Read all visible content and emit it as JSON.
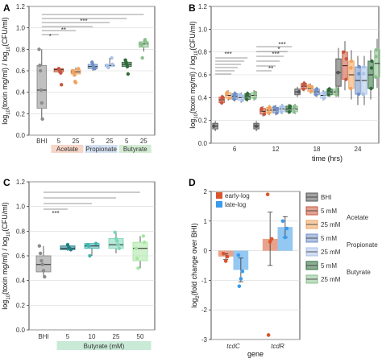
{
  "chart_data": [
    {
      "panel": "A",
      "type": "box",
      "ylabel": "log10(toxin mg/ml) / log10(CFU/ml)",
      "ylim": [
        0,
        1.2
      ],
      "yticks": [
        0,
        0.2,
        0.4,
        0.6,
        0.8,
        1.0,
        1.2
      ],
      "groups": [
        {
          "name": "BHI",
          "color": "#8c8c8c",
          "q1": 0.25,
          "median": 0.42,
          "q3": 0.65,
          "whisker_low": 0.15,
          "whisker_high": 0.8,
          "points": [
            0.8,
            0.65,
            0.6,
            0.42,
            0.3,
            0.15
          ]
        },
        {
          "name": "Acetate 5",
          "color": "#c8553d",
          "q1": 0.59,
          "median": 0.61,
          "q3": 0.62,
          "whisker_low": 0.58,
          "whisker_high": 0.62,
          "points": [
            0.62,
            0.61,
            0.6,
            0.58,
            0.47
          ]
        },
        {
          "name": "Acetate 25",
          "color": "#f0a35e",
          "q1": 0.57,
          "median": 0.59,
          "q3": 0.61,
          "whisker_low": 0.55,
          "whisker_high": 0.63,
          "points": [
            0.62,
            0.6,
            0.58,
            0.56,
            0.5,
            0.49
          ]
        },
        {
          "name": "Propionate 5",
          "color": "#6f8fc7",
          "q1": 0.62,
          "median": 0.64,
          "q3": 0.66,
          "whisker_low": 0.6,
          "whisker_high": 0.68,
          "points": [
            0.68,
            0.66,
            0.64,
            0.63,
            0.62
          ]
        },
        {
          "name": "Propionate 25",
          "color": "#a9c2e8",
          "q1": 0.64,
          "median": 0.65,
          "q3": 0.66,
          "whisker_low": 0.63,
          "whisker_high": 0.72,
          "points": [
            0.72,
            0.66,
            0.65,
            0.64,
            0.63
          ]
        },
        {
          "name": "Butyrate 5",
          "color": "#2e6b3a",
          "q1": 0.64,
          "median": 0.66,
          "q3": 0.68,
          "whisker_low": 0.62,
          "whisker_high": 0.7,
          "points": [
            0.7,
            0.68,
            0.66,
            0.64,
            0.57
          ]
        },
        {
          "name": "Butyrate 25",
          "color": "#8bbf8e",
          "q1": 0.82,
          "median": 0.85,
          "q3": 0.87,
          "whisker_low": 0.78,
          "whisker_high": 0.89,
          "points": [
            0.89,
            0.87,
            0.86,
            0.85,
            0.84,
            0.72
          ]
        }
      ],
      "x_labels": [
        "BHI",
        "5",
        "25",
        "5",
        "25",
        "5",
        "25"
      ],
      "group_labels": [
        "Acetate",
        "Propionate",
        "Butyrate"
      ],
      "significance": [
        "*",
        "**",
        "***"
      ]
    },
    {
      "panel": "B",
      "type": "box",
      "xlabel": "time (hrs)",
      "ylabel": "log10(toxin mg/ml) / log10(CFU/ml)",
      "ylim": [
        0,
        1.2
      ],
      "yticks": [
        0,
        0.2,
        0.4,
        0.6,
        0.8,
        1.0,
        1.2
      ],
      "time_points": [
        "6",
        "12",
        "18",
        "24"
      ],
      "series_colors": [
        "#555555",
        "#c8553d",
        "#f0a35e",
        "#6f8fc7",
        "#a9c2e8",
        "#2e6b3a",
        "#8bbf8e"
      ],
      "values": {
        "6": [
          0.15,
          0.38,
          0.42,
          0.41,
          0.4,
          0.41,
          0.42
        ],
        "12": [
          0.15,
          0.28,
          0.29,
          0.29,
          0.3,
          0.3,
          0.3
        ],
        "18": [
          0.45,
          0.5,
          0.48,
          0.45,
          0.42,
          0.45,
          0.45
        ],
        "24": [
          0.62,
          0.68,
          0.6,
          0.55,
          0.55,
          0.6,
          0.7
        ]
      },
      "significance": [
        "***",
        "***",
        "***",
        "*",
        "**"
      ]
    },
    {
      "panel": "C",
      "type": "box",
      "xlabel": "Butyrate (mM)",
      "ylabel": "log10(toxin mg/ml) / log10(CFU/ml)",
      "ylim": [
        0,
        1.2
      ],
      "yticks": [
        0,
        0.2,
        0.4,
        0.6,
        0.8,
        1.0,
        1.2
      ],
      "x_labels": [
        "BHI",
        "5",
        "10",
        "25",
        "50"
      ],
      "groups": [
        {
          "name": "BHI",
          "color": "#8c8c8c",
          "q1": 0.47,
          "median": 0.53,
          "q3": 0.6,
          "whisker_low": 0.43,
          "whisker_high": 0.68,
          "points": [
            0.68,
            0.62,
            0.56,
            0.53,
            0.48,
            0.43
          ]
        },
        {
          "name": "5",
          "color": "#1f7f86",
          "q1": 0.65,
          "median": 0.66,
          "q3": 0.68,
          "whisker_low": 0.64,
          "whisker_high": 0.69,
          "points": [
            0.69,
            0.67,
            0.66,
            0.65
          ]
        },
        {
          "name": "10",
          "color": "#3fb5b0",
          "q1": 0.66,
          "median": 0.68,
          "q3": 0.7,
          "whisker_low": 0.6,
          "whisker_high": 0.7,
          "points": [
            0.7,
            0.69,
            0.68,
            0.6
          ]
        },
        {
          "name": "25",
          "color": "#7fd6b8",
          "q1": 0.66,
          "median": 0.69,
          "q3": 0.74,
          "whisker_low": 0.62,
          "whisker_high": 0.79,
          "points": [
            0.79,
            0.74,
            0.72,
            0.69,
            0.66
          ]
        },
        {
          "name": "50",
          "color": "#a8e6a2",
          "q1": 0.56,
          "median": 0.66,
          "q3": 0.71,
          "whisker_low": 0.5,
          "whisker_high": 0.76,
          "points": [
            0.76,
            0.71,
            0.66,
            0.58,
            0.5
          ]
        }
      ],
      "significance": [
        "***"
      ]
    },
    {
      "panel": "D",
      "type": "bar",
      "xlabel": "gene",
      "ylabel": "log2(fold change over BHI)",
      "ylim": [
        -3,
        2
      ],
      "yticks": [
        -3,
        -2,
        -1,
        0,
        1,
        2
      ],
      "categories": [
        "tcdC",
        "tcdR"
      ],
      "series": [
        {
          "name": "early-log",
          "color": "#d9552d",
          "values": [
            -0.2,
            0.4
          ],
          "errors": [
            0.1,
            0.9
          ]
        },
        {
          "name": "late-log",
          "color": "#3b9bea",
          "values": [
            -0.65,
            0.8
          ],
          "errors": [
            0.4,
            0.35
          ]
        }
      ],
      "points": {
        "early-log": [
          [
            -0.1,
            -0.2,
            -0.35
          ],
          [
            1.9,
            0.4,
            0.3,
            -2.85
          ]
        ],
        "late-log": [
          [
            -0.15,
            -0.7,
            -0.95,
            -1.2
          ],
          [
            1.0,
            0.75,
            0.45
          ]
        ]
      },
      "legend_title": "",
      "legend2": [
        {
          "label": "BHI",
          "color": "#555555"
        },
        {
          "label": "5 mM",
          "color": "#c8553d"
        },
        {
          "label": "25 mM",
          "color": "#f0a35e"
        },
        {
          "label": "5 mM",
          "color": "#6f8fc7"
        },
        {
          "label": "25 mM",
          "color": "#a9c2e8"
        },
        {
          "label": "5 mM",
          "color": "#2e6b3a"
        },
        {
          "label": "25 mM",
          "color": "#8bbf8e"
        }
      ],
      "legend2_groups": [
        "Acetate",
        "Propionate",
        "Butyrate"
      ]
    }
  ],
  "labels": {
    "a": "A",
    "b": "B",
    "c": "C",
    "d": "D"
  }
}
